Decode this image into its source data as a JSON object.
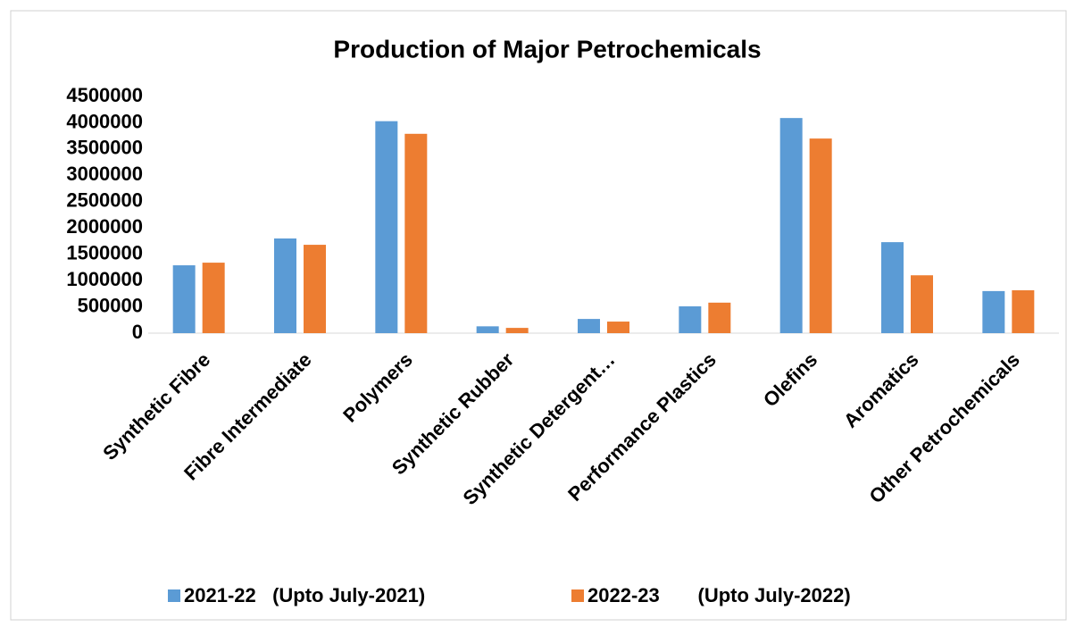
{
  "chart_data": {
    "type": "bar",
    "title": "Production of Major Petrochemicals",
    "categories": [
      "Synthetic Fibre",
      "Fibre Intermediate",
      "Polymers",
      "Synthetic Rubber",
      "Synthetic Detergent…",
      "Performance Plastics",
      "Olefins",
      "Aromatics",
      "Other Petrochemicals"
    ],
    "series": [
      {
        "name": "2021-22   (Upto July-2021)",
        "color": "#5b9bd5",
        "values": [
          1290000,
          1800000,
          4030000,
          130000,
          270000,
          510000,
          4090000,
          1730000,
          800000
        ]
      },
      {
        "name": "2022-23       (Upto July-2022)",
        "color": "#ed7d31",
        "values": [
          1340000,
          1680000,
          3790000,
          100000,
          220000,
          580000,
          3700000,
          1100000,
          815000
        ]
      }
    ],
    "ylim": [
      0,
      4500000
    ],
    "yticks": [
      0,
      500000,
      1000000,
      1500000,
      2000000,
      2500000,
      3000000,
      3500000,
      4000000,
      4500000
    ],
    "grid": false,
    "legend": "bottom"
  }
}
